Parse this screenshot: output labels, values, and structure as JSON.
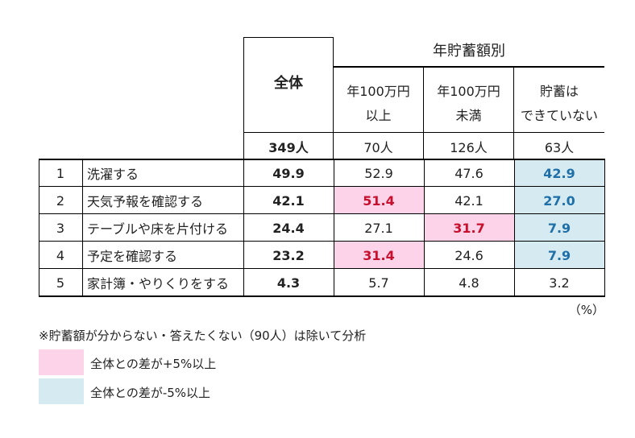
{
  "header": {
    "group_title": "年貯蓄額別",
    "total_label": "全体",
    "col1_line1": "年100万円",
    "col1_line2": "以上",
    "col2_line1": "年100万円",
    "col2_line2": "未満",
    "col3_line1": "貯蓄は",
    "col3_line2": "できていない"
  },
  "counts": {
    "total": "349人",
    "col1": "70人",
    "col2": "126人",
    "col3": "63人"
  },
  "rows": [
    {
      "rank": "1",
      "label": "洗濯する",
      "total": "49.9",
      "col1": "52.9",
      "col2": "47.6",
      "col3": "42.9"
    },
    {
      "rank": "2",
      "label": "天気予報を確認する",
      "total": "42.1",
      "col1": "51.4",
      "col2": "42.1",
      "col3": "27.0"
    },
    {
      "rank": "3",
      "label": "テーブルや床を片付ける",
      "total": "24.4",
      "col1": "27.1",
      "col2": "31.7",
      "col3": "7.9"
    },
    {
      "rank": "4",
      "label": "予定を確認する",
      "total": "23.2",
      "col1": "31.4",
      "col2": "24.6",
      "col3": "7.9"
    },
    {
      "rank": "5",
      "label": "家計簿・やりくりをする",
      "total": "4.3",
      "col1": "5.7",
      "col2": "4.8",
      "col3": "3.2"
    }
  ],
  "unit": "（%）",
  "note": "※貯蓄額が分からない・答えたくない（90人）は除いて分析",
  "legend": {
    "plus_label": "全体との差が+5%以上",
    "minus_label": "全体との差が-5%以上",
    "plus_color": "#fcd3e8",
    "minus_color": "#d6ebf1"
  }
}
